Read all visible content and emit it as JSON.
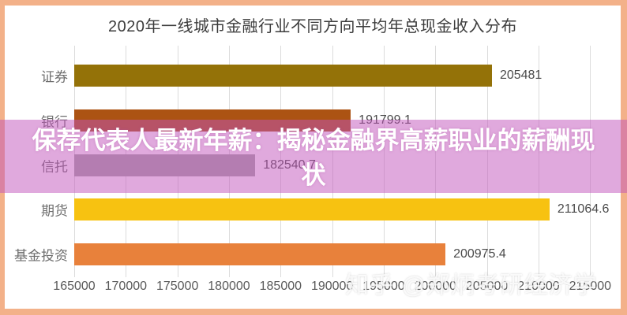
{
  "chart_data": {
    "type": "bar",
    "orientation": "horizontal",
    "title": "2020年一线城市金融行业不同方向平均年总现金收入分布",
    "categories": [
      "证券",
      "银行",
      "信托",
      "期货",
      "基金投资"
    ],
    "values": [
      205481,
      191799.1,
      182540.7,
      211064.6,
      200975.4
    ],
    "value_labels": [
      "205481",
      "191799.1",
      "182540.7",
      "211064.6",
      "200975.4"
    ],
    "bar_colors": [
      "#947208",
      "#AC5313",
      "#A6A6A6",
      "#F7C211",
      "#E8813B"
    ],
    "xlim": [
      165000,
      215000
    ],
    "x_tick_step": 5000,
    "x_ticks": [
      "165000",
      "170000",
      "175000",
      "180000",
      "185000",
      "190000",
      "195000",
      "200000",
      "205000",
      "210000",
      "215000"
    ],
    "grid": true,
    "legend": "none",
    "frame_border_color": "#F3B189",
    "gridline_color": "#dcdcdc"
  },
  "overlay": {
    "line1": "保荐代表人最新年薪：揭秘金融界高薪职业的薪酬现",
    "line2": "状",
    "full_text": "保荐代表人最新年薪：揭秘金融界高薪职业的薪酬现状",
    "band_color": "rgba(194,84,188,0.5)",
    "text_color": "#ffffff"
  },
  "watermark": {
    "text": "知乎 @郑炳考研经济学"
  }
}
